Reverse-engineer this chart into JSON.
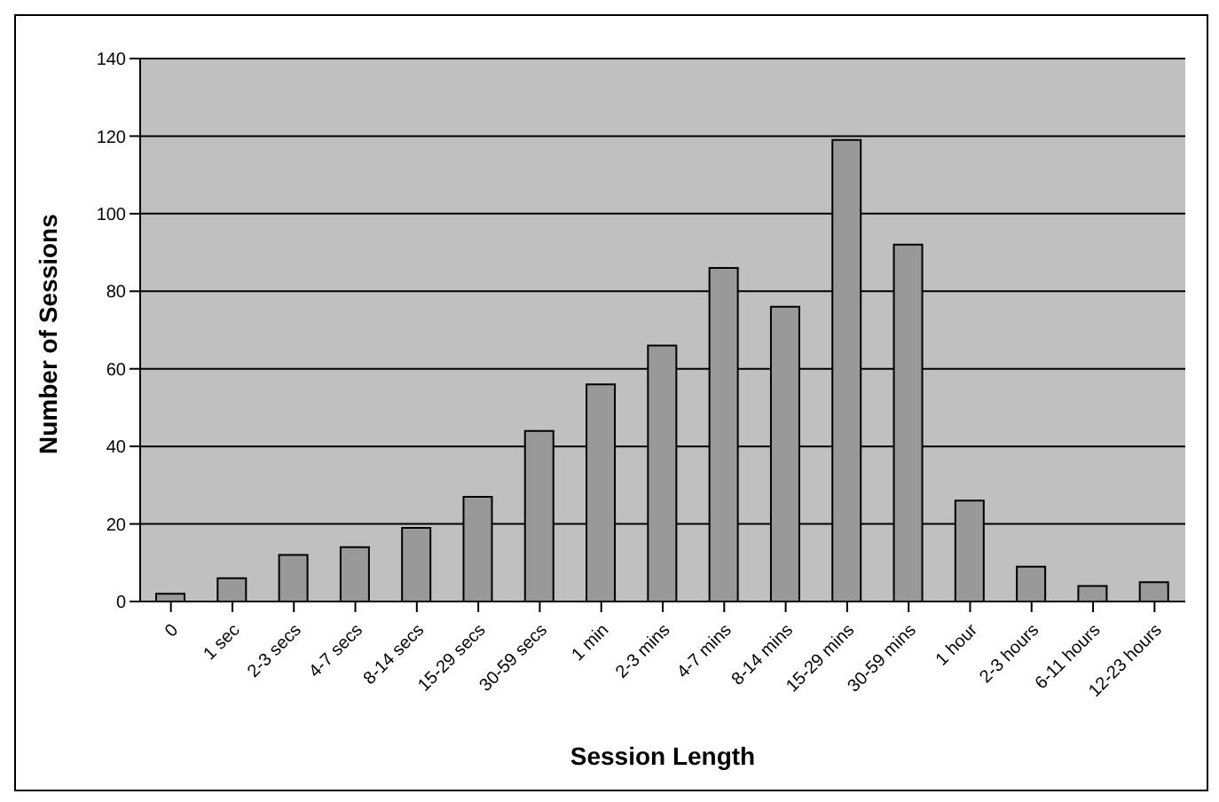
{
  "chart_data": {
    "type": "bar",
    "xlabel": "Session Length",
    "ylabel": "Number of Sessions",
    "categories": [
      "0",
      "1 sec",
      "2-3 secs",
      "4-7 secs",
      "8-14 secs",
      "15-29 secs",
      "30-59 secs",
      "1 min",
      "2-3 mins",
      "4-7 mins",
      "8-14 mins",
      "15-29 mins",
      "30-59 mins",
      "1 hour",
      "2-3 hours",
      "6-11 hours",
      "12-23 hours"
    ],
    "values": [
      2,
      6,
      12,
      14,
      19,
      27,
      44,
      56,
      66,
      86,
      76,
      119,
      92,
      26,
      9,
      4,
      5
    ],
    "color": "#999999",
    "ylim": [
      0,
      140
    ],
    "yticks": [
      0,
      20,
      40,
      60,
      80,
      100,
      120,
      140
    ],
    "grid": "y"
  }
}
